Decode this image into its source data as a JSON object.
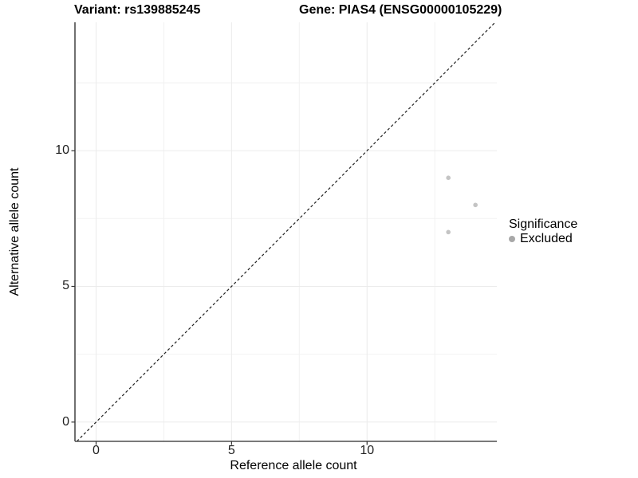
{
  "title": {
    "variant": "Variant: rs139885245",
    "gene": "Gene: PIAS4 (ENSG00000105229)"
  },
  "legend": {
    "title": "Significance",
    "items": [
      {
        "label": "Excluded",
        "color": "#a8a8a8"
      }
    ]
  },
  "chart_data": {
    "type": "scatter",
    "title": "Variant: rs139885245 / Gene: PIAS4 (ENSG00000105229)",
    "xlabel": "Reference allele count",
    "ylabel": "Alternative allele count",
    "xlim": [
      -0.78,
      14.79
    ],
    "ylim": [
      -0.71,
      14.73
    ],
    "x_ticks": [
      0,
      5,
      10
    ],
    "y_ticks": [
      0,
      5,
      10
    ],
    "x_minor_breaks": [
      2.5,
      7.5,
      12.5
    ],
    "y_minor_breaks": [
      2.5,
      7.5,
      12.5
    ],
    "grid": true,
    "legend_position": "right",
    "reference_line": {
      "kind": "identity y=x",
      "style": "dashed",
      "color": "#1f1f1f"
    },
    "series": [
      {
        "name": "Excluded",
        "point_color": "#c4c4c4",
        "points": [
          {
            "x": 13,
            "y": 9
          },
          {
            "x": 14,
            "y": 8
          },
          {
            "x": 13,
            "y": 7
          }
        ]
      }
    ],
    "style_colors": {
      "background": "#ffffff",
      "grid_major": "#ebebeb",
      "grid_minor": "#f2f2f2",
      "axis_line": "#4d4d4d",
      "tick_mark": "#333333",
      "tick_label": "#1f1f1f"
    }
  }
}
